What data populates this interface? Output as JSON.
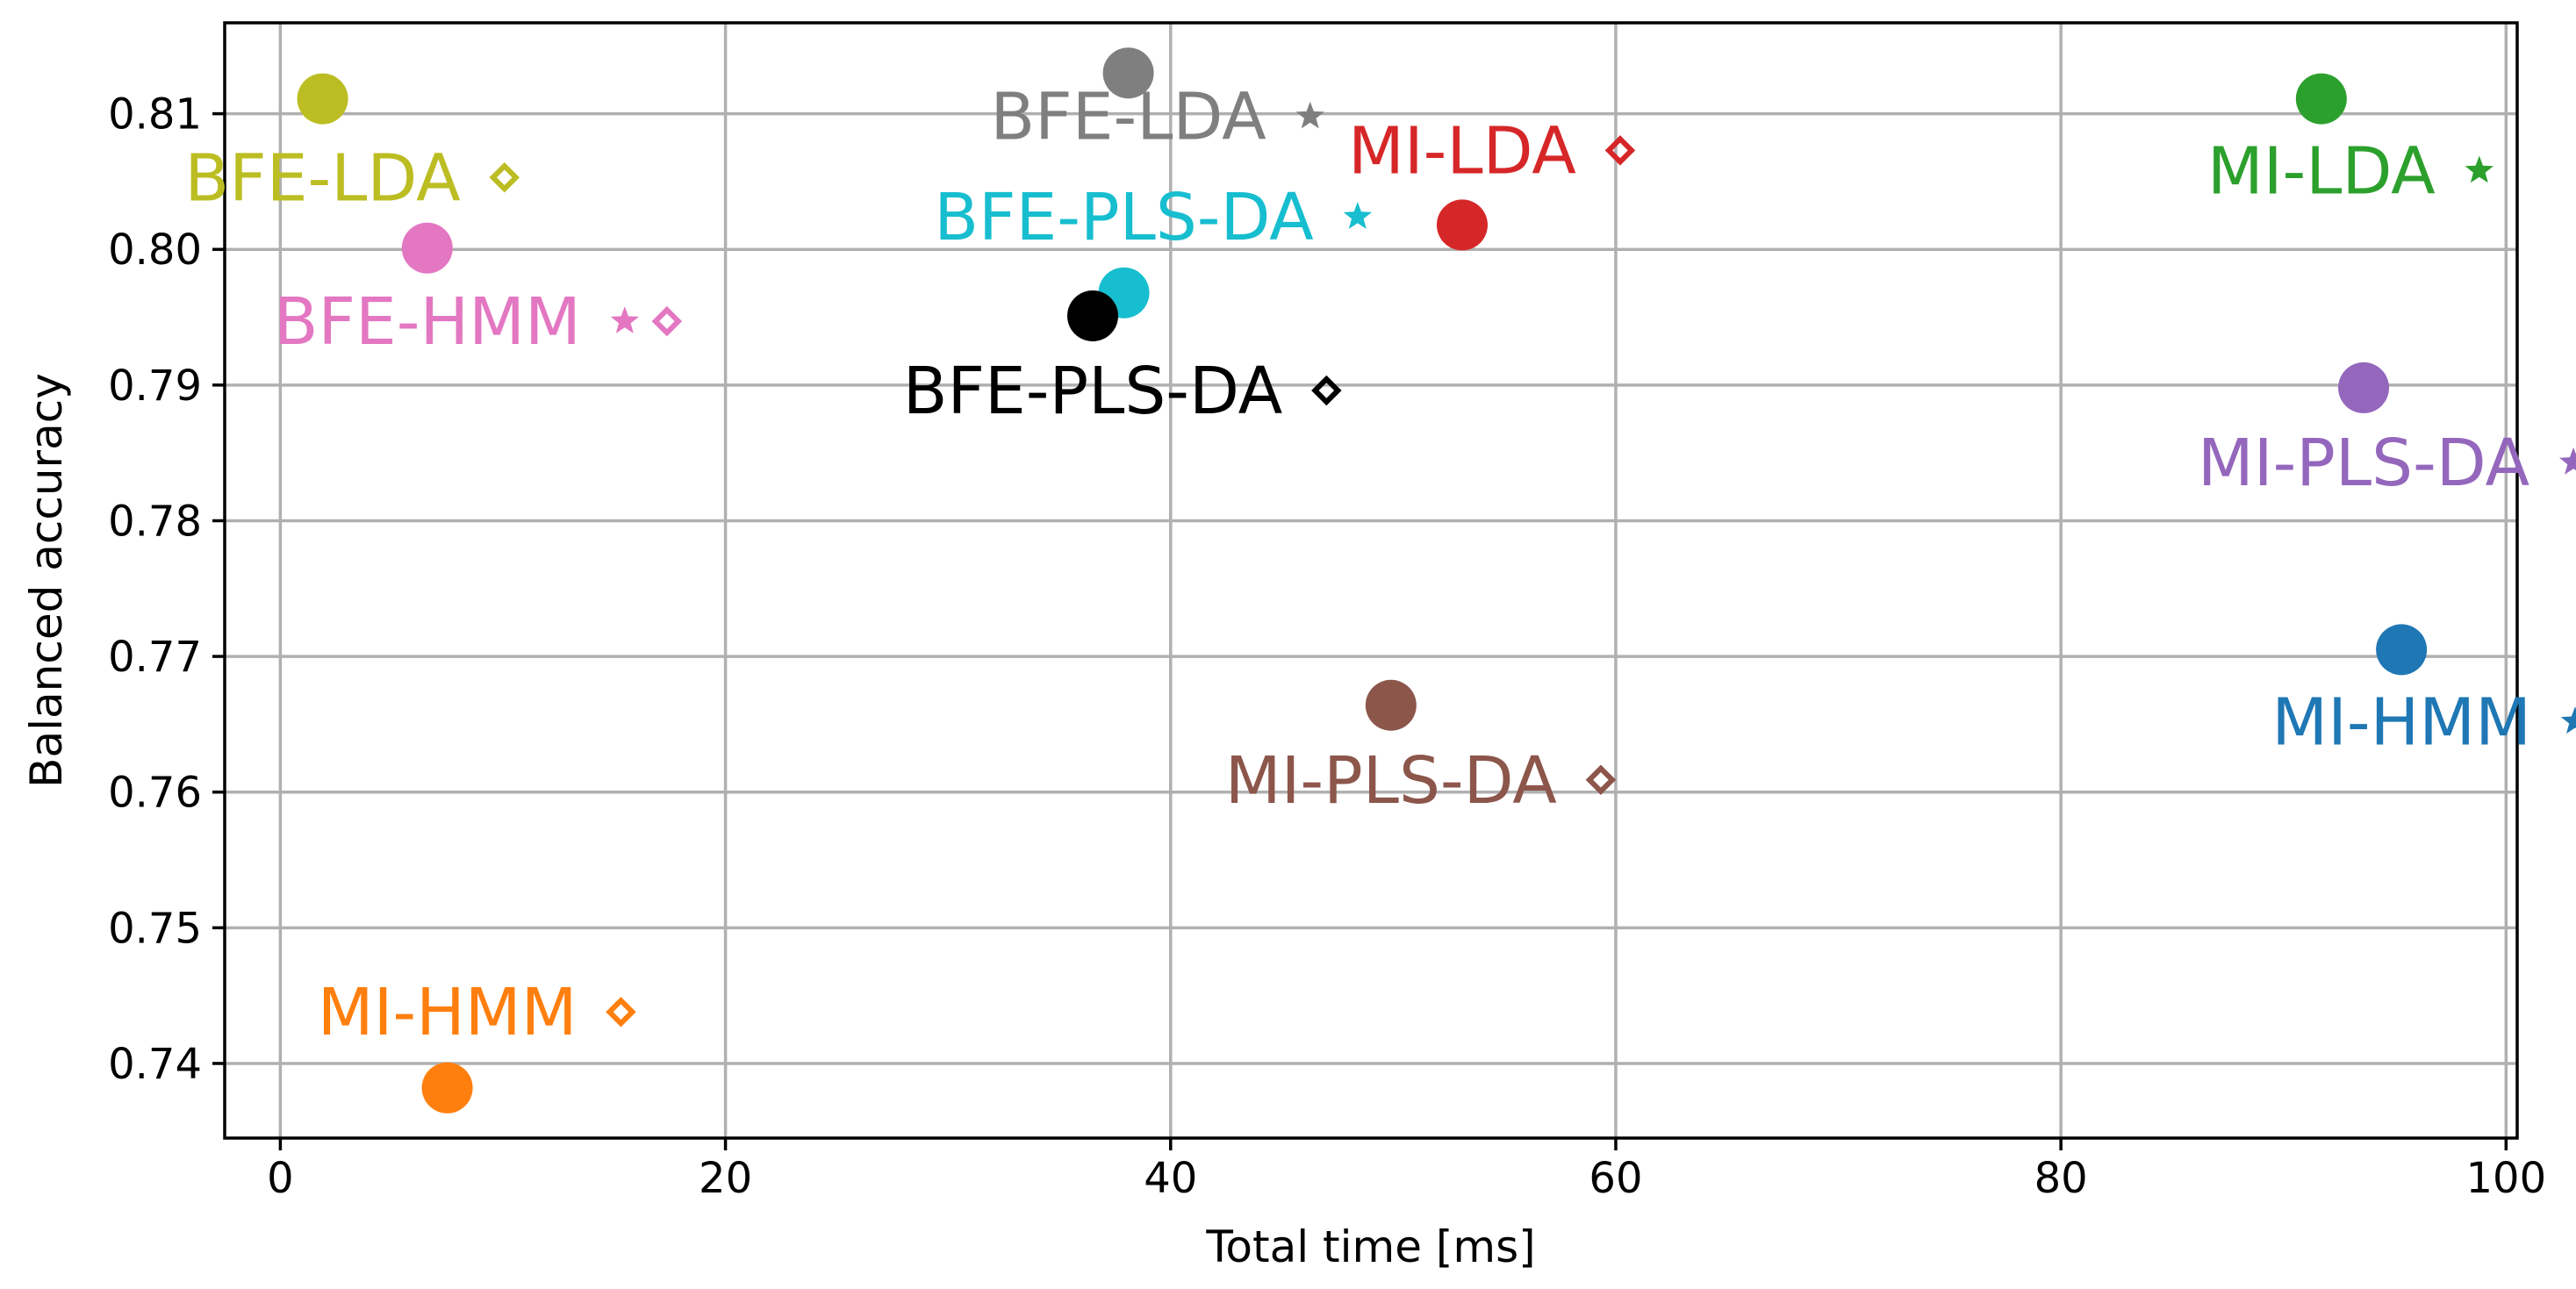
{
  "chart_data": {
    "type": "scatter",
    "title": "",
    "xlabel": "Total time [ms]",
    "ylabel": "Balanced accuracy",
    "xlim": [
      -2.5,
      100.5
    ],
    "ylim": [
      0.7345,
      0.8167
    ],
    "grid": true,
    "xticks": [
      0,
      20,
      40,
      60,
      80,
      100
    ],
    "xtick_labels": [
      "0",
      "20",
      "40",
      "60",
      "80",
      "100"
    ],
    "yticks": [
      0.74,
      0.75,
      0.76,
      0.77,
      0.78,
      0.79,
      0.8,
      0.81
    ],
    "ytick_labels": [
      "0.74",
      "0.75",
      "0.76",
      "0.77",
      "0.78",
      "0.79",
      "0.80",
      "0.81"
    ],
    "points": [
      {
        "name": "BFE-LDA",
        "marker": "diamond",
        "color": "#bcbd22",
        "x": 1.9,
        "y": 0.8111,
        "label_x": 1.9,
        "label_y": 0.8053
      },
      {
        "name": "BFE-HMM",
        "marker": "star diamond",
        "color": "#e377c2",
        "x": 6.6,
        "y": 0.8001,
        "label_x": 6.6,
        "label_y": 0.7947
      },
      {
        "name": "MI-HMM",
        "marker": "diamond",
        "color": "#ff7f0e",
        "x": 7.5,
        "y": 0.7382,
        "label_x": 7.5,
        "label_y": 0.7438
      },
      {
        "name": "BFE-LDA",
        "marker": "star",
        "color": "#7f7f7f",
        "x": 38.1,
        "y": 0.813,
        "label_x": 38.1,
        "label_y": 0.8098
      },
      {
        "name": "BFE-PLS-DA",
        "marker": "star",
        "color": "#17becf",
        "x": 37.9,
        "y": 0.7968,
        "label_x": 37.9,
        "label_y": 0.8024
      },
      {
        "name": "BFE-PLS-DA",
        "marker": "diamond",
        "color": "#000000",
        "x": 36.5,
        "y": 0.7951,
        "label_x": 36.5,
        "label_y": 0.7896
      },
      {
        "name": "MI-LDA",
        "marker": "diamond",
        "color": "#d62728",
        "x": 53.1,
        "y": 0.8018,
        "label_x": 53.1,
        "label_y": 0.8073
      },
      {
        "name": "MI-PLS-DA",
        "marker": "diamond",
        "color": "#8c564b",
        "x": 49.9,
        "y": 0.7664,
        "label_x": 49.9,
        "label_y": 0.7609
      },
      {
        "name": "MI-LDA",
        "marker": "star",
        "color": "#2ca02c",
        "x": 91.7,
        "y": 0.8111,
        "label_x": 91.7,
        "label_y": 0.8058
      },
      {
        "name": "MI-PLS-DA",
        "marker": "star",
        "color": "#9467bd",
        "x": 93.6,
        "y": 0.7898,
        "label_x": 93.6,
        "label_y": 0.7843
      },
      {
        "name": "MI-HMM",
        "marker": "star",
        "color": "#1f77b4",
        "x": 95.3,
        "y": 0.7705,
        "label_x": 95.3,
        "label_y": 0.7652
      }
    ]
  }
}
